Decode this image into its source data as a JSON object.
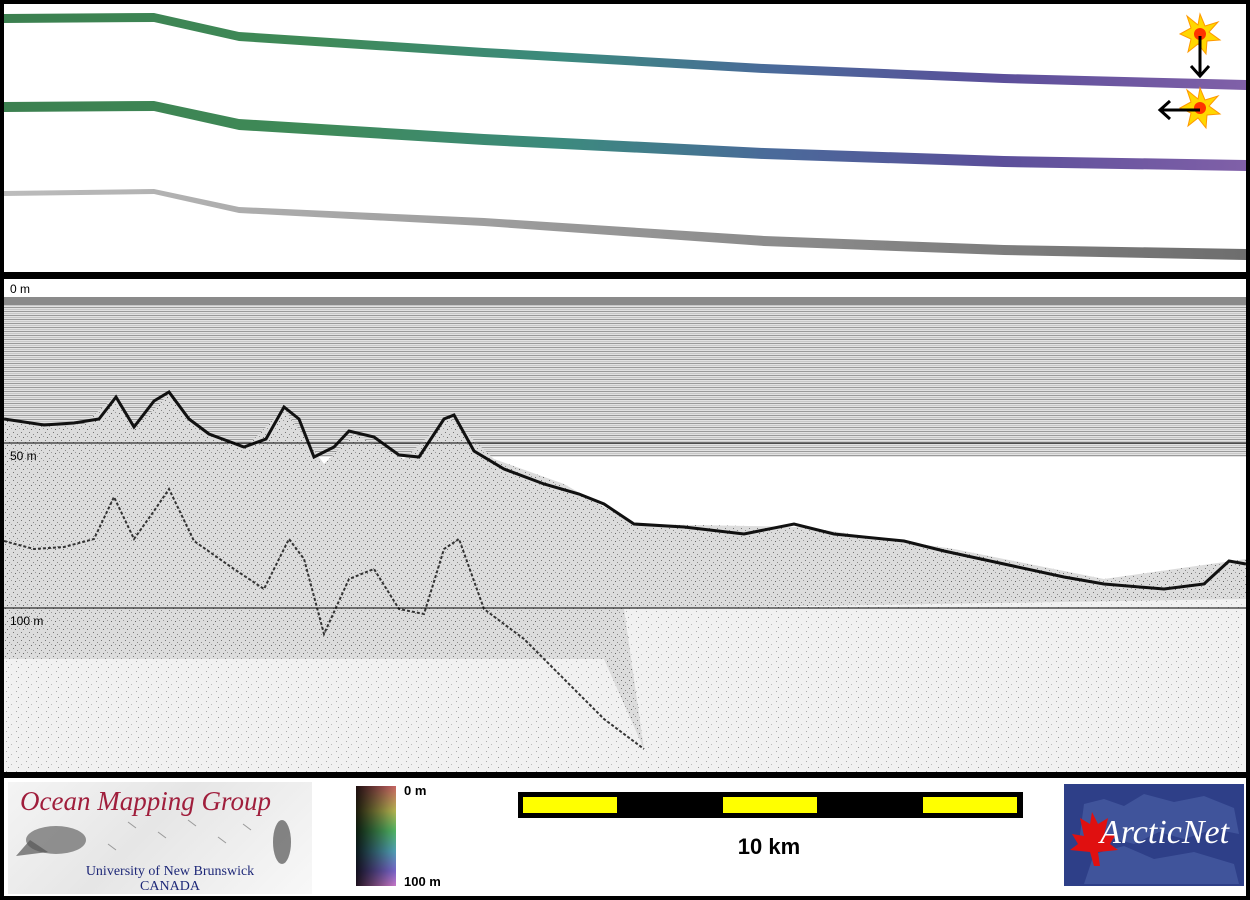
{
  "profile": {
    "depth_labels": [
      "0 m",
      "50 m",
      "100 m"
    ]
  },
  "legend": {
    "organization": {
      "title": "Ocean Mapping Group",
      "subtitle_line1": "University of New Brunswick",
      "subtitle_line2": "CANADA"
    },
    "colorbar": {
      "top_label": "0 m",
      "bottom_label": "100 m",
      "colors": [
        "#c86464",
        "#b4b450",
        "#50b464",
        "#50a0b4",
        "#7864c8",
        "#c878c8"
      ]
    },
    "scalebar": {
      "label": "10 km",
      "colors": {
        "light": "#ffff00",
        "dark": "#000000"
      }
    },
    "partner": {
      "name": "ArcticNet",
      "brand_color": "#2e3f88",
      "leaf_color": "#e01010"
    }
  },
  "icons": {
    "sun_marker": "sun-icon",
    "arrow_down": "arrow-down-icon",
    "arrow_left": "arrow-left-icon"
  }
}
